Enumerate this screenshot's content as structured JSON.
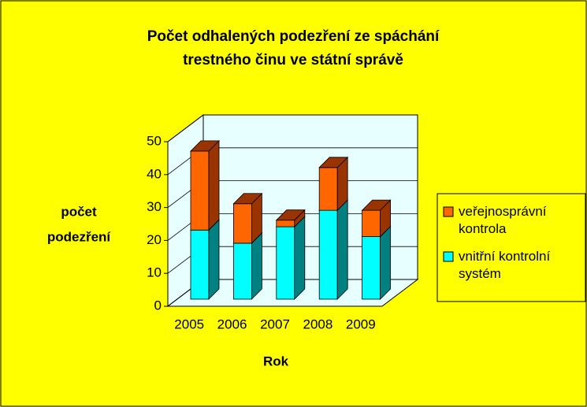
{
  "chart_data": {
    "type": "bar3d_stacked",
    "title": [
      "Počet odhalených podezření ze spáchání",
      "trestného činu ve státní správě"
    ],
    "x_label": "Rok",
    "y_label": [
      "počet",
      "podezření"
    ],
    "categories": [
      "2005",
      "2006",
      "2007",
      "2008",
      "2009"
    ],
    "series": [
      {
        "name": "vnitřní kontrolní systém",
        "color": "#00FFFF",
        "side_color": "#008080",
        "values": [
          21,
          17,
          22,
          27,
          19
        ]
      },
      {
        "name": "veřejnosprávní kontrola",
        "color": "#FF6600",
        "side_color": "#993300",
        "values": [
          24,
          12,
          2,
          13,
          8
        ]
      }
    ],
    "ylim": [
      0,
      50
    ],
    "yticks": [
      0,
      10,
      20,
      30,
      40,
      50
    ],
    "grid": true,
    "legend": "right"
  }
}
